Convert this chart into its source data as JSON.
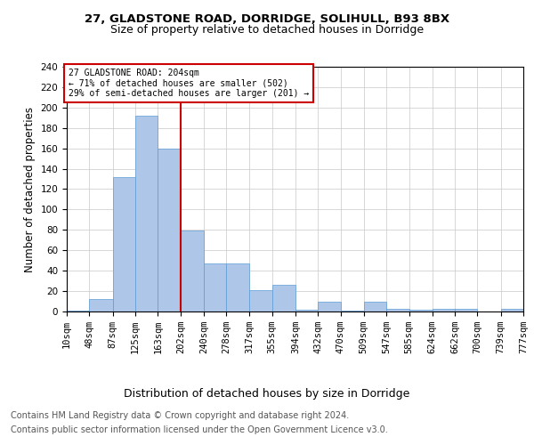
{
  "title1": "27, GLADSTONE ROAD, DORRIDGE, SOLIHULL, B93 8BX",
  "title2": "Size of property relative to detached houses in Dorridge",
  "xlabel": "Distribution of detached houses by size in Dorridge",
  "ylabel": "Number of detached properties",
  "bin_edges": [
    10,
    48,
    87,
    125,
    163,
    202,
    240,
    278,
    317,
    355,
    394,
    432,
    470,
    509,
    547,
    585,
    624,
    662,
    700,
    739,
    777
  ],
  "bin_counts": [
    1,
    12,
    132,
    192,
    160,
    79,
    47,
    47,
    21,
    26,
    2,
    10,
    1,
    10,
    3,
    2,
    3,
    3,
    0,
    3
  ],
  "bar_color": "#aec6e8",
  "bar_edge_color": "#5b9bd5",
  "vline_x": 202,
  "vline_color": "#cc0000",
  "annotation_title": "27 GLADSTONE ROAD: 204sqm",
  "annotation_line1": "← 71% of detached houses are smaller (502)",
  "annotation_line2": "29% of semi-detached houses are larger (201) →",
  "annotation_box_color": "#cc0000",
  "annotation_bg_color": "#ffffff",
  "ylim": [
    0,
    240
  ],
  "yticks": [
    0,
    20,
    40,
    60,
    80,
    100,
    120,
    140,
    160,
    180,
    200,
    220,
    240
  ],
  "tick_labels": [
    "10sqm",
    "48sqm",
    "87sqm",
    "125sqm",
    "163sqm",
    "202sqm",
    "240sqm",
    "278sqm",
    "317sqm",
    "355sqm",
    "394sqm",
    "432sqm",
    "470sqm",
    "509sqm",
    "547sqm",
    "585sqm",
    "624sqm",
    "662sqm",
    "700sqm",
    "739sqm",
    "777sqm"
  ],
  "footer1": "Contains HM Land Registry data © Crown copyright and database right 2024.",
  "footer2": "Contains public sector information licensed under the Open Government Licence v3.0.",
  "bg_color": "#ffffff",
  "grid_color": "#c8c8c8",
  "title1_fontsize": 9.5,
  "title2_fontsize": 9,
  "xlabel_fontsize": 9,
  "ylabel_fontsize": 8.5,
  "tick_fontsize": 7.5,
  "footer_fontsize": 7
}
